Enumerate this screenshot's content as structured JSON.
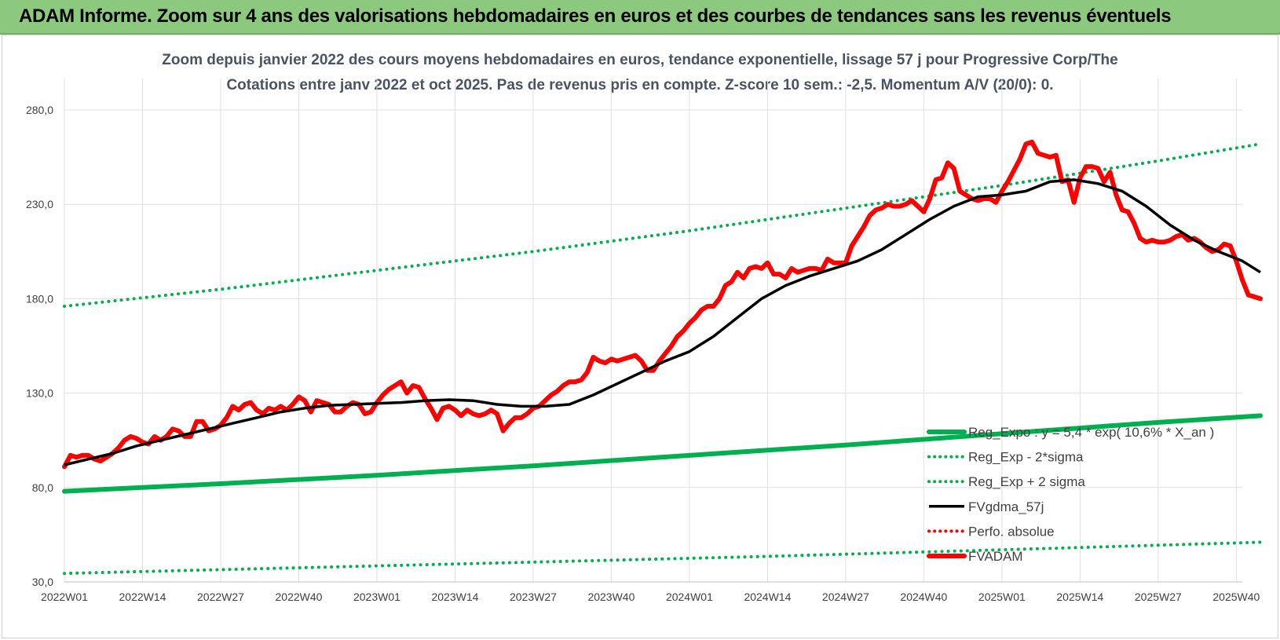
{
  "header": {
    "title": "ADAM Informe. Zoom sur 4 ans des valorisations hebdomadaires en euros et des courbes de tendances sans les revenus éventuels"
  },
  "colors": {
    "banner": "#8cc97f",
    "trend": "#00b050",
    "smooth": "#000000",
    "price": "#ff0000",
    "grid": "#e0e0e0"
  },
  "chart_data": {
    "type": "line",
    "title": "Zoom depuis janvier 2022 des cours moyens hebdomadaires en euros, tendance exponentielle, lissage 57 j pour Progressive Corp/The",
    "subtitle": "Cotations entre janv 2022 et oct 2025. Pas de revenus pris en compte. Z-score 10 sem.: -2,5.  Momentum A/V (20/0): 0.",
    "xlabel": "",
    "ylabel": "",
    "ylim": [
      30,
      280
    ],
    "grid": true,
    "legend_position": "bottom-right",
    "x_range": [
      0,
      196
    ],
    "x_ticks": [
      {
        "x": 0,
        "label": "2022W01"
      },
      {
        "x": 13,
        "label": "2022W14"
      },
      {
        "x": 26,
        "label": "2022W27"
      },
      {
        "x": 39,
        "label": "2022W40"
      },
      {
        "x": 52,
        "label": "2023W01"
      },
      {
        "x": 65,
        "label": "2023W14"
      },
      {
        "x": 78,
        "label": "2023W27"
      },
      {
        "x": 91,
        "label": "2023W40"
      },
      {
        "x": 104,
        "label": "2024W01"
      },
      {
        "x": 117,
        "label": "2024W14"
      },
      {
        "x": 130,
        "label": "2024W27"
      },
      {
        "x": 143,
        "label": "2024W40"
      },
      {
        "x": 156,
        "label": "2025W01"
      },
      {
        "x": 169,
        "label": "2025W14"
      },
      {
        "x": 182,
        "label": "2025W27"
      },
      {
        "x": 195,
        "label": "2025W40"
      }
    ],
    "y_ticks": [
      {
        "value": 30,
        "label": "30,0"
      },
      {
        "value": 80,
        "label": "80,0"
      },
      {
        "value": 130,
        "label": "130,0"
      },
      {
        "value": 180,
        "label": "180,0"
      },
      {
        "value": 230,
        "label": "230,0"
      },
      {
        "value": 280,
        "label": "280,0"
      }
    ],
    "series": [
      {
        "name": "Reg_Expo : y = 5,4 * exp( 10,6% * X_an )",
        "style": "solid-thick",
        "color": "#00b050",
        "x": [
          0,
          26,
          52,
          78,
          104,
          130,
          156,
          182,
          199
        ],
        "values": [
          78,
          82,
          86.5,
          91.5,
          97,
          102.5,
          108.5,
          114.5,
          118
        ]
      },
      {
        "name": "Reg_Exp - 2*sigma",
        "style": "dotted",
        "color": "#00b050",
        "x": [
          0,
          39,
          78,
          117,
          156,
          199
        ],
        "values": [
          34.5,
          37.5,
          40.5,
          43.5,
          47,
          51
        ]
      },
      {
        "name": "Reg_Exp + 2 sigma",
        "style": "dotted",
        "color": "#00b050",
        "x": [
          0,
          26,
          52,
          78,
          104,
          130,
          156,
          182,
          199
        ],
        "values": [
          176,
          185,
          195,
          205,
          216,
          228,
          240,
          253,
          262
        ]
      },
      {
        "name": "FVgdma_57j",
        "style": "solid",
        "color": "#000000",
        "x": [
          0,
          4,
          8,
          12,
          16,
          20,
          24,
          28,
          32,
          36,
          40,
          44,
          48,
          52,
          56,
          60,
          64,
          68,
          72,
          76,
          80,
          84,
          88,
          92,
          96,
          100,
          104,
          108,
          112,
          116,
          120,
          124,
          128,
          132,
          136,
          140,
          144,
          148,
          152,
          156,
          160,
          164,
          168,
          172,
          176,
          180,
          184,
          188,
          192,
          196,
          199
        ],
        "values": [
          92,
          95,
          98,
          102,
          105,
          108,
          111,
          114,
          117,
          120,
          122,
          123.5,
          124,
          124.5,
          125,
          126,
          126.5,
          126,
          124,
          123,
          123,
          124,
          129,
          135,
          141,
          147,
          152,
          160,
          170,
          180,
          187,
          192,
          196,
          200,
          206,
          214,
          222,
          229,
          234,
          235,
          237,
          242,
          243,
          241,
          237,
          229,
          219,
          211,
          205,
          200,
          194
        ]
      },
      {
        "name": "Perfo. absolue",
        "style": "dotted",
        "color": "#ff0000",
        "x": [],
        "values": []
      },
      {
        "name": "FVADAM",
        "style": "solid-thick",
        "color": "#ff0000",
        "x": [
          0,
          1,
          2,
          3,
          4,
          5,
          6,
          7,
          8,
          9,
          10,
          11,
          12,
          13,
          14,
          15,
          16,
          17,
          18,
          19,
          20,
          21,
          22,
          23,
          24,
          25,
          26,
          27,
          28,
          29,
          30,
          31,
          32,
          33,
          34,
          35,
          36,
          37,
          38,
          39,
          40,
          41,
          42,
          43,
          44,
          45,
          46,
          47,
          48,
          49,
          50,
          51,
          52,
          53,
          54,
          55,
          56,
          57,
          58,
          59,
          60,
          61,
          62,
          63,
          64,
          65,
          66,
          67,
          68,
          69,
          70,
          71,
          72,
          73,
          74,
          75,
          76,
          77,
          78,
          79,
          80,
          81,
          82,
          83,
          84,
          85,
          86,
          87,
          88,
          89,
          90,
          91,
          92,
          93,
          94,
          95,
          96,
          97,
          98,
          99,
          100,
          101,
          102,
          103,
          104,
          105,
          106,
          107,
          108,
          109,
          110,
          111,
          112,
          113,
          114,
          115,
          116,
          117,
          118,
          119,
          120,
          121,
          122,
          123,
          124,
          125,
          126,
          127,
          128,
          129,
          130,
          131,
          132,
          133,
          134,
          135,
          136,
          137,
          138,
          139,
          140,
          141,
          142,
          143,
          144,
          145,
          146,
          147,
          148,
          149,
          150,
          151,
          152,
          153,
          154,
          155,
          156,
          157,
          158,
          159,
          160,
          161,
          162,
          163,
          164,
          165,
          166,
          167,
          168,
          169,
          170,
          171,
          172,
          173,
          174,
          175,
          176,
          177,
          178,
          179,
          180,
          181,
          182,
          183,
          184,
          185,
          186,
          187,
          188,
          189,
          190,
          191,
          192,
          193,
          194,
          195,
          196,
          197,
          198,
          199
        ],
        "values": [
          91,
          97,
          96,
          97,
          97,
          95,
          94,
          96,
          98,
          101,
          105,
          107,
          106,
          104,
          103,
          107,
          105,
          107,
          111,
          110,
          107,
          107,
          115,
          115,
          110,
          111,
          113,
          117,
          123,
          121,
          124,
          125,
          121,
          119,
          122,
          121,
          123,
          121,
          124,
          128,
          126,
          120,
          126,
          125,
          124,
          120,
          120,
          123,
          125,
          124,
          119,
          120,
          125,
          129,
          132,
          134,
          136,
          130,
          134,
          133,
          127,
          122,
          116,
          122,
          123,
          121,
          118,
          121,
          119,
          118,
          119,
          121,
          119,
          110,
          114,
          117,
          117,
          119,
          122,
          123,
          126,
          129,
          131,
          134,
          136,
          136,
          137,
          141,
          149,
          147,
          146,
          148,
          147,
          148,
          149,
          150,
          147,
          142,
          142,
          147,
          151,
          155,
          160,
          163,
          167,
          170,
          174,
          176,
          176,
          180,
          187,
          189,
          194,
          191,
          196,
          197,
          196,
          199,
          193,
          193,
          191,
          196,
          194,
          195,
          196,
          196,
          195,
          201,
          199,
          199,
          199,
          208,
          213,
          218,
          224,
          227,
          228,
          230,
          229,
          229,
          230,
          232,
          229,
          226,
          233,
          243,
          244,
          252,
          249,
          237,
          235,
          233,
          232,
          233,
          233,
          231,
          237,
          242,
          248,
          254,
          262,
          263,
          257,
          256,
          255,
          256,
          242,
          243,
          231,
          244,
          250,
          250,
          249,
          242,
          247,
          235,
          227,
          226,
          220,
          212,
          210,
          211,
          210,
          210,
          211,
          213,
          214,
          211,
          212,
          210,
          207,
          205,
          206,
          209,
          208,
          200,
          190,
          182,
          181,
          180
        ]
      }
    ]
  },
  "legend": [
    {
      "label": "Reg_Expo : y = 5,4 * exp( 10,6% * X_an )",
      "style": "solid-thick",
      "color": "#00b050"
    },
    {
      "label": "Reg_Exp - 2*sigma",
      "style": "dotted",
      "color": "#00b050"
    },
    {
      "label": "Reg_Exp + 2 sigma",
      "style": "dotted",
      "color": "#00b050"
    },
    {
      "label": "FVgdma_57j",
      "style": "solid",
      "color": "#000000"
    },
    {
      "label": "Perfo. absolue",
      "style": "dotted",
      "color": "#ff0000"
    },
    {
      "label": "FVADAM",
      "style": "solid-thick",
      "color": "#ff0000"
    }
  ]
}
